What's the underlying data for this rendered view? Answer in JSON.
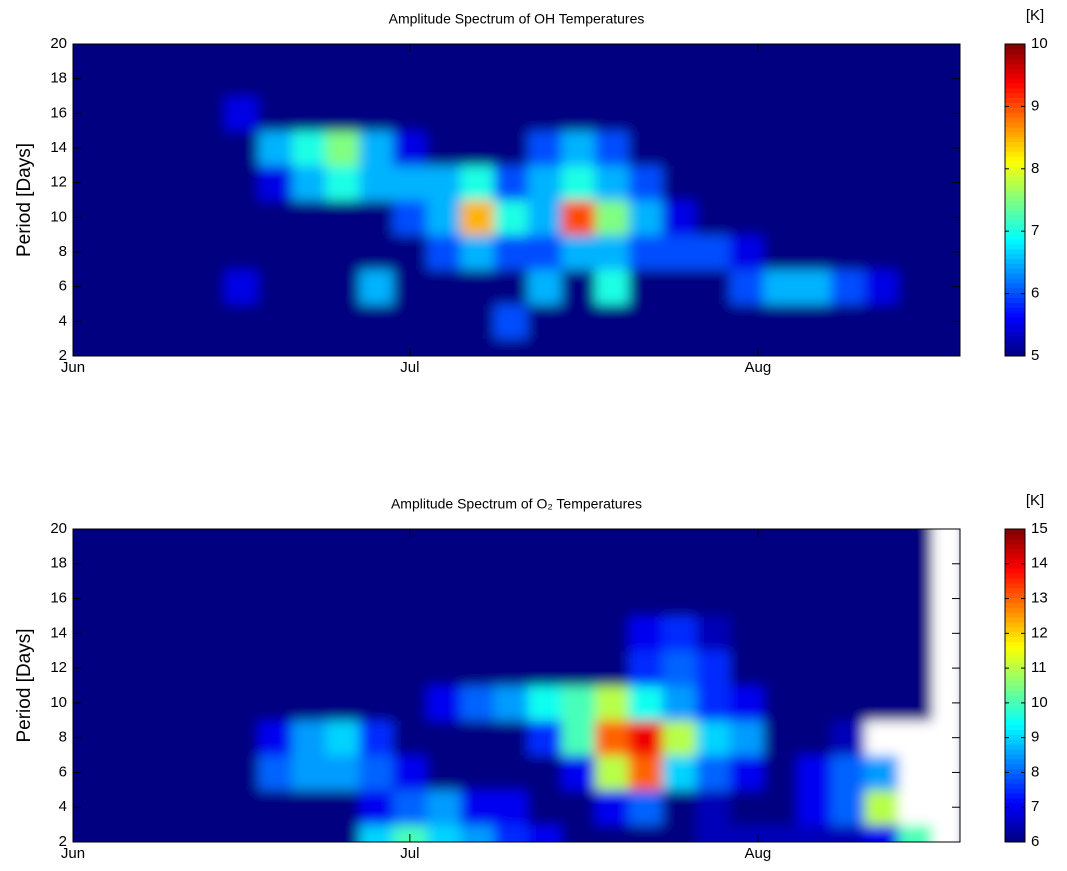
{
  "chart_data": [
    {
      "type": "contour",
      "title": "Amplitude Spectrum of OH Temperatures",
      "y_label": "Period [Days]",
      "colorbar_label": "[K]",
      "colormap": "jet",
      "x": [
        0,
        3,
        6,
        9,
        12,
        15,
        18,
        21,
        24,
        27,
        30,
        33,
        36,
        39,
        42,
        45,
        48,
        51,
        54,
        57,
        60,
        63,
        66,
        69,
        72,
        75,
        78
      ],
      "y": [
        2,
        4,
        6,
        8,
        10,
        12,
        14,
        16,
        18,
        20
      ],
      "z": [
        [
          5,
          5,
          5,
          5,
          5,
          5,
          5,
          5,
          5,
          5,
          5,
          5,
          5,
          5,
          5,
          5,
          5,
          5,
          5,
          5,
          5,
          5,
          5,
          5,
          5,
          5,
          5
        ],
        [
          5,
          5,
          5,
          5,
          5,
          5,
          5,
          5,
          5,
          5,
          5,
          5,
          5,
          6,
          5,
          5,
          5,
          5,
          5,
          5,
          5,
          5,
          5,
          5,
          5,
          5,
          5
        ],
        [
          5,
          5,
          5,
          5,
          5,
          5.5,
          5,
          5,
          5,
          6.5,
          5,
          5,
          5,
          5,
          6.5,
          5,
          7,
          5,
          5,
          5,
          6,
          6.5,
          6.5,
          6,
          5.5,
          5,
          5
        ],
        [
          5,
          5,
          5,
          5,
          5,
          5,
          5,
          5,
          5,
          5,
          5,
          6,
          6.5,
          6,
          6,
          6.5,
          6.5,
          6,
          6,
          6,
          5.5,
          5,
          5,
          5,
          5,
          5,
          5
        ],
        [
          5,
          5,
          5,
          5,
          5,
          5,
          5,
          5,
          5,
          5,
          6,
          6.5,
          8.5,
          7,
          6.5,
          9,
          7.5,
          6.5,
          5.5,
          5,
          5,
          5,
          5,
          5,
          5,
          5,
          5
        ],
        [
          5,
          5,
          5,
          5,
          5,
          5,
          5.5,
          6.5,
          7,
          6.5,
          6.5,
          6.5,
          7,
          6,
          6.5,
          7,
          6.5,
          6,
          5,
          5,
          5,
          5,
          5,
          5,
          5,
          5,
          5
        ],
        [
          5,
          5,
          5,
          5,
          5,
          5,
          6.5,
          7,
          7.5,
          6.5,
          5.5,
          5,
          5,
          5,
          6,
          6.5,
          6,
          5,
          5,
          5,
          5,
          5,
          5,
          5,
          5,
          5,
          5
        ],
        [
          5,
          5,
          5,
          5,
          5,
          5.5,
          5,
          5,
          5,
          5,
          5,
          5,
          5,
          5,
          5,
          5,
          5,
          5,
          5,
          5,
          5,
          5,
          5,
          5,
          5,
          5,
          5
        ],
        [
          5,
          5,
          5,
          5,
          5,
          5,
          5,
          5,
          5,
          5,
          5,
          5,
          5,
          5,
          5,
          5,
          5,
          5,
          5,
          5,
          5,
          5,
          5,
          5,
          5,
          5,
          5
        ],
        [
          5,
          5,
          5,
          5,
          5,
          5,
          5,
          5,
          5,
          5,
          5,
          5,
          5,
          5,
          5,
          5,
          5,
          5,
          5,
          5,
          5,
          5,
          5,
          5,
          5,
          5,
          5
        ]
      ],
      "xlim": [
        0,
        79
      ],
      "ylim": [
        2,
        20
      ],
      "xticks": [
        {
          "value": 0,
          "label": "Jun"
        },
        {
          "value": 30,
          "label": "Jul"
        },
        {
          "value": 61,
          "label": "Aug"
        }
      ],
      "yticks": [
        2,
        4,
        6,
        8,
        10,
        12,
        14,
        16,
        18,
        20
      ],
      "clim": [
        5,
        10
      ],
      "cticks": [
        5,
        6,
        7,
        8,
        9,
        10
      ]
    },
    {
      "type": "contour",
      "title": "Amplitude Spectrum of O₂ Temperatures",
      "y_label": "Period [Days]",
      "colorbar_label": "[K]",
      "colormap": "jet",
      "x": [
        0,
        3,
        6,
        9,
        12,
        15,
        18,
        21,
        24,
        27,
        30,
        33,
        36,
        39,
        42,
        45,
        48,
        51,
        54,
        57,
        60,
        63,
        66,
        69,
        72,
        75,
        78
      ],
      "y": [
        2,
        4,
        6,
        8,
        10,
        12,
        14,
        16,
        18,
        20
      ],
      "z": [
        [
          6,
          6,
          6,
          6,
          6,
          6,
          6,
          6,
          6,
          9,
          10,
          9,
          8.5,
          7.5,
          7,
          6,
          6,
          6,
          6,
          6.5,
          6.5,
          6.5,
          6.5,
          6.5,
          7,
          10,
          null
        ],
        [
          6,
          6,
          6,
          6,
          6,
          6,
          6,
          6,
          6,
          7,
          8,
          8.5,
          7,
          7,
          6,
          6,
          7,
          8,
          6,
          6.5,
          6,
          6,
          7,
          8,
          11,
          null,
          null
        ],
        [
          6,
          6,
          6,
          6,
          6,
          6,
          8,
          8.5,
          8.5,
          8,
          7,
          6,
          6,
          6,
          6,
          7,
          11,
          13,
          9,
          8,
          7,
          6,
          7,
          8,
          8.5,
          null,
          null
        ],
        [
          6,
          6,
          6,
          6,
          6,
          6,
          7,
          8.5,
          9,
          7.5,
          6,
          6,
          6,
          6,
          7.5,
          10,
          13,
          14,
          11,
          9,
          8.5,
          6,
          6,
          6.5,
          null,
          null,
          null
        ],
        [
          6,
          6,
          6,
          6,
          6,
          6,
          6,
          6,
          6,
          6,
          6,
          7,
          8,
          8.5,
          9.5,
          10,
          11,
          9.5,
          8.5,
          7.5,
          7,
          6,
          6,
          6,
          6,
          6,
          null
        ],
        [
          6,
          6,
          6,
          6,
          6,
          6,
          6,
          6,
          6,
          6,
          6,
          6,
          6,
          6,
          6,
          6,
          6,
          7.5,
          8,
          7.5,
          6,
          6,
          6,
          6,
          6,
          6,
          null
        ],
        [
          6,
          6,
          6,
          6,
          6,
          6,
          6,
          6,
          6,
          6,
          6,
          6,
          6,
          6,
          6,
          6,
          6,
          7,
          7.5,
          6.5,
          6,
          6,
          6,
          6,
          6,
          6,
          null
        ],
        [
          6,
          6,
          6,
          6,
          6,
          6,
          6,
          6,
          6,
          6,
          6,
          6,
          6,
          6,
          6,
          6,
          6,
          6,
          6,
          6,
          6,
          6,
          6,
          6,
          6,
          6,
          null
        ],
        [
          6,
          6,
          6,
          6,
          6,
          6,
          6,
          6,
          6,
          6,
          6,
          6,
          6,
          6,
          6,
          6,
          6,
          6,
          6,
          6,
          6,
          6,
          6,
          6,
          6,
          6,
          null
        ],
        [
          6,
          6,
          6,
          6,
          6,
          6,
          6,
          6,
          6,
          6,
          6,
          6,
          6,
          6,
          6,
          6,
          6,
          6,
          6,
          6,
          6,
          6,
          6,
          6,
          6,
          6,
          null
        ]
      ],
      "xlim": [
        0,
        79
      ],
      "ylim": [
        2,
        20
      ],
      "xticks": [
        {
          "value": 0,
          "label": "Jun"
        },
        {
          "value": 30,
          "label": "Jul"
        },
        {
          "value": 61,
          "label": "Aug"
        }
      ],
      "yticks": [
        2,
        4,
        6,
        8,
        10,
        12,
        14,
        16,
        18,
        20
      ],
      "clim": [
        6,
        15
      ],
      "cticks": [
        6,
        7,
        8,
        9,
        10,
        11,
        12,
        13,
        14,
        15
      ]
    }
  ]
}
